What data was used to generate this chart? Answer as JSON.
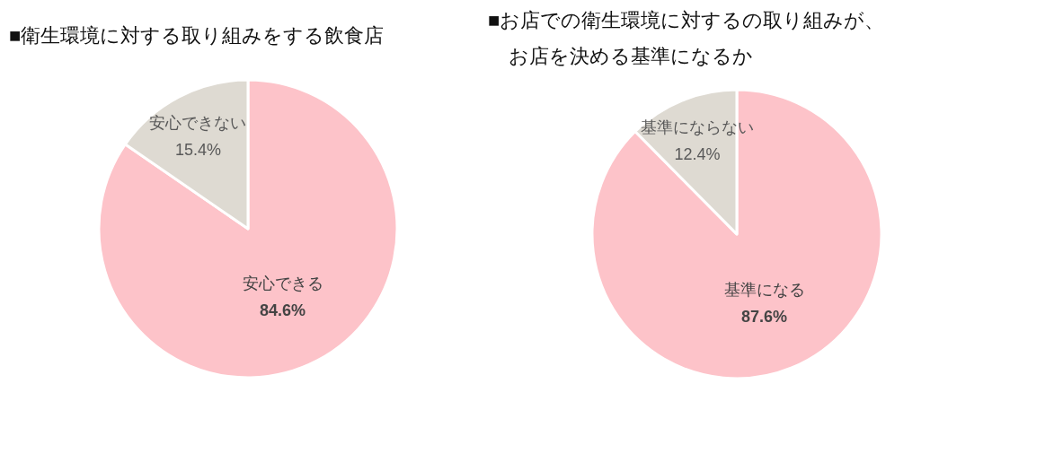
{
  "chart_data": [
    {
      "type": "pie",
      "title": "■衛生環境に対する取り組みをする飲食店",
      "categories": [
        "安心できる",
        "安心できない"
      ],
      "values": [
        84.6,
        15.4
      ],
      "value_labels": [
        "84.6%",
        "15.4%"
      ],
      "colors": [
        "#fdc3c9",
        "#dedad2"
      ]
    },
    {
      "type": "pie",
      "title": "■お店での衛生環境に対するの取り組みが、お店を決める基準になるか",
      "categories": [
        "基準になる",
        "基準にならない"
      ],
      "values": [
        87.6,
        12.4
      ],
      "value_labels": [
        "87.6%",
        "12.4%"
      ],
      "colors": [
        "#fdc3c9",
        "#dedad2"
      ]
    }
  ]
}
